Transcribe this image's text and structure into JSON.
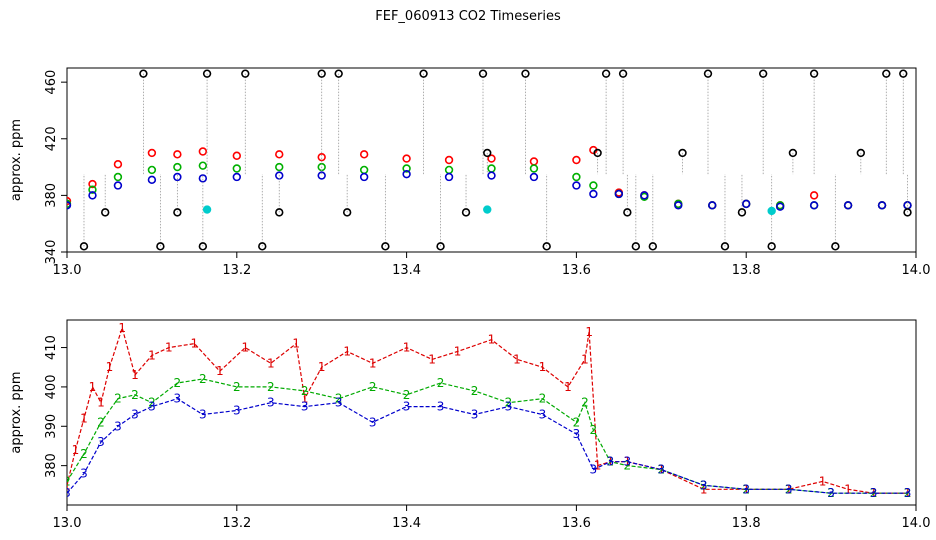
{
  "title": "FEF_060913  CO2 Timeseries",
  "chart_data": [
    {
      "type": "scatter",
      "ylabel": "approx. ppm",
      "xlim": [
        13.0,
        14.0
      ],
      "ylim": [
        340,
        470
      ],
      "x_ticks": [
        "13.0",
        "13.2",
        "13.4",
        "13.6",
        "13.8",
        "14.0"
      ],
      "y_ticks": [
        "340",
        "380",
        "420",
        "460"
      ],
      "x_tick_values": [
        13.0,
        13.2,
        13.4,
        13.6,
        13.8,
        14.0
      ],
      "y_tick_values": [
        340,
        380,
        420,
        460
      ],
      "grid": false,
      "series": [
        {
          "color": "#ff0000",
          "x": [
            13.0,
            13.03,
            13.06,
            13.1,
            13.13,
            13.16,
            13.2,
            13.25,
            13.3,
            13.35,
            13.4,
            13.45,
            13.5,
            13.55,
            13.6,
            13.62,
            13.65,
            13.68,
            13.72,
            13.76,
            13.8,
            13.84,
            13.88,
            13.92,
            13.96,
            13.99
          ],
          "values": [
            376,
            388,
            402,
            410,
            409,
            411,
            408,
            409,
            407,
            409,
            406,
            405,
            406,
            404,
            405,
            412,
            382,
            380,
            374,
            373,
            374,
            373,
            380,
            373,
            373,
            373
          ]
        },
        {
          "color": "#00b000",
          "x": [
            13.0,
            13.03,
            13.06,
            13.1,
            13.13,
            13.16,
            13.2,
            13.25,
            13.3,
            13.35,
            13.4,
            13.45,
            13.5,
            13.55,
            13.6,
            13.62,
            13.65,
            13.68,
            13.72,
            13.76,
            13.8,
            13.84,
            13.88,
            13.92,
            13.96,
            13.99
          ],
          "values": [
            374,
            384,
            393,
            398,
            400,
            401,
            399,
            400,
            400,
            398,
            399,
            398,
            399,
            399,
            393,
            387,
            381,
            379,
            374,
            373,
            374,
            373,
            373,
            373,
            373,
            373
          ]
        },
        {
          "color": "#0000cc",
          "x": [
            13.0,
            13.03,
            13.06,
            13.1,
            13.13,
            13.16,
            13.2,
            13.25,
            13.3,
            13.35,
            13.4,
            13.45,
            13.5,
            13.55,
            13.6,
            13.62,
            13.65,
            13.68,
            13.72,
            13.76,
            13.8,
            13.84,
            13.88,
            13.92,
            13.96,
            13.99
          ],
          "values": [
            373,
            380,
            387,
            391,
            393,
            392,
            393,
            394,
            394,
            393,
            395,
            393,
            394,
            393,
            387,
            381,
            381,
            380,
            373,
            373,
            374,
            372,
            373,
            373,
            373,
            373
          ]
        },
        {
          "color": "#000000",
          "x": [
            13.02,
            13.045,
            13.09,
            13.11,
            13.13,
            13.16,
            13.165,
            13.21,
            13.23,
            13.25,
            13.3,
            13.32,
            13.33,
            13.375,
            13.42,
            13.44,
            13.47,
            13.49,
            13.495,
            13.54,
            13.565,
            13.625,
            13.635,
            13.655,
            13.66,
            13.67,
            13.69,
            13.725,
            13.755,
            13.775,
            13.795,
            13.82,
            13.83,
            13.855,
            13.88,
            13.905,
            13.935,
            13.965,
            13.985,
            13.99
          ],
          "values": [
            344,
            368,
            466,
            344,
            368,
            344,
            466,
            466,
            344,
            368,
            466,
            466,
            368,
            344,
            466,
            344,
            368,
            466,
            410,
            466,
            344,
            410,
            466,
            466,
            368,
            344,
            344,
            410,
            466,
            344,
            368,
            466,
            344,
            410,
            466,
            344,
            410,
            466,
            466,
            368
          ]
        },
        {
          "color": "#00cccc",
          "x": [
            13.165,
            13.495,
            13.83
          ],
          "values": [
            370,
            370,
            369
          ]
        }
      ]
    },
    {
      "type": "scatter",
      "ylabel": "approx. ppm",
      "xlim": [
        13.0,
        14.0
      ],
      "ylim": [
        370,
        417
      ],
      "x_ticks": [
        "13.0",
        "13.2",
        "13.4",
        "13.6",
        "13.8",
        "14.0"
      ],
      "y_ticks": [
        "380",
        "390",
        "400",
        "410"
      ],
      "x_tick_values": [
        13.0,
        13.2,
        13.4,
        13.6,
        13.8,
        14.0
      ],
      "y_tick_values": [
        380,
        390,
        400,
        410
      ],
      "grid": false,
      "series": [
        {
          "name": "1",
          "color": "#dd0000",
          "x": [
            13.0,
            13.01,
            13.02,
            13.03,
            13.04,
            13.05,
            13.065,
            13.08,
            13.1,
            13.12,
            13.15,
            13.18,
            13.21,
            13.24,
            13.27,
            13.28,
            13.3,
            13.33,
            13.36,
            13.4,
            13.43,
            13.46,
            13.5,
            13.53,
            13.56,
            13.59,
            13.61,
            13.615,
            13.625,
            13.64,
            13.66,
            13.7,
            13.75,
            13.8,
            13.85,
            13.89,
            13.92,
            13.95,
            13.99
          ],
          "values": [
            375,
            384,
            392,
            400,
            396,
            405,
            415,
            403,
            408,
            410,
            411,
            404,
            410,
            406,
            411,
            397,
            405,
            409,
            406,
            410,
            407,
            409,
            412,
            407,
            405,
            400,
            407,
            414,
            380,
            381,
            381,
            379,
            374,
            374,
            374,
            376,
            374,
            373,
            373
          ]
        },
        {
          "name": "2",
          "color": "#00aa00",
          "x": [
            13.0,
            13.02,
            13.04,
            13.06,
            13.08,
            13.1,
            13.13,
            13.16,
            13.2,
            13.24,
            13.28,
            13.32,
            13.36,
            13.4,
            13.44,
            13.48,
            13.52,
            13.56,
            13.6,
            13.61,
            13.62,
            13.64,
            13.66,
            13.7,
            13.75,
            13.8,
            13.85,
            13.9,
            13.95,
            13.99
          ],
          "values": [
            376,
            383,
            391,
            397,
            398,
            396,
            401,
            402,
            400,
            400,
            399,
            397,
            400,
            398,
            401,
            399,
            396,
            397,
            391,
            396,
            389,
            381,
            380,
            379,
            375,
            374,
            374,
            373,
            373,
            373
          ]
        },
        {
          "name": "3",
          "color": "#0000cc",
          "x": [
            13.0,
            13.02,
            13.04,
            13.06,
            13.08,
            13.1,
            13.13,
            13.16,
            13.2,
            13.24,
            13.28,
            13.32,
            13.36,
            13.4,
            13.44,
            13.48,
            13.52,
            13.56,
            13.6,
            13.62,
            13.64,
            13.66,
            13.7,
            13.75,
            13.8,
            13.85,
            13.9,
            13.95,
            13.99
          ],
          "values": [
            373,
            378,
            386,
            390,
            393,
            395,
            397,
            393,
            394,
            396,
            395,
            396,
            391,
            395,
            395,
            393,
            395,
            393,
            388,
            379,
            381,
            381,
            379,
            375,
            374,
            374,
            373,
            373,
            373
          ]
        }
      ]
    }
  ]
}
